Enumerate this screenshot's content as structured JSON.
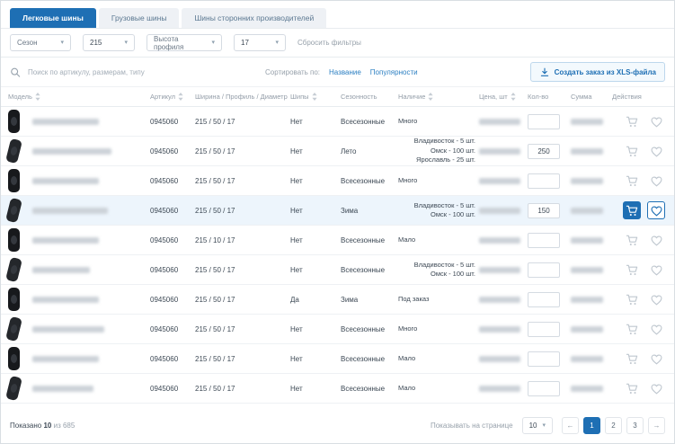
{
  "colors": {
    "accent": "#1e6fb4",
    "link": "#2b7fc2"
  },
  "tabs": [
    {
      "label": "Легковые шины",
      "active": true
    },
    {
      "label": "Грузовые шины",
      "active": false
    },
    {
      "label": "Шины сторонних производителей",
      "active": false
    }
  ],
  "filters": {
    "season_placeholder": "Сезон",
    "width_value": "215",
    "profile_placeholder": "Высота профиля",
    "diameter_value": "17",
    "reset_label": "Сбросить фильтры"
  },
  "search": {
    "placeholder": "Поиск по артикулу, размерам, типу"
  },
  "sort": {
    "label": "Сортировать по:",
    "options": [
      "Название",
      "Популярности"
    ]
  },
  "xls_button_label": "Создать заказ из XLS-файла",
  "table": {
    "headers": [
      {
        "label": "Модель",
        "sortable": true
      },
      {
        "label": "Артикул",
        "sortable": true
      },
      {
        "label": "Ширина / Профиль / Диаметр",
        "sortable": false
      },
      {
        "label": "Шипы",
        "sortable": true
      },
      {
        "label": "Сезонность",
        "sortable": false
      },
      {
        "label": "Наличие",
        "sortable": true
      },
      {
        "label": "Цена, шт",
        "sortable": true
      },
      {
        "label": "Кол-во",
        "sortable": false
      },
      {
        "label": "Сумма",
        "sortable": false
      },
      {
        "label": "Действия",
        "sortable": false
      }
    ],
    "rows": [
      {
        "article": "0945060",
        "size": "215 / 50 / 17",
        "spikes": "Нет",
        "season": "Всесезонные",
        "availability": [
          "Много"
        ],
        "qty": "",
        "selected": false
      },
      {
        "article": "0945060",
        "size": "215 / 50 / 17",
        "spikes": "Нет",
        "season": "Лето",
        "availability": [
          "Владивосток - 5 шт.",
          "Омск - 100 шт.",
          "Ярославль - 25 шт."
        ],
        "qty": "250",
        "selected": false
      },
      {
        "article": "0945060",
        "size": "215 / 50 / 17",
        "spikes": "Нет",
        "season": "Всесезонные",
        "availability": [
          "Много"
        ],
        "qty": "",
        "selected": false
      },
      {
        "article": "0945060",
        "size": "215 / 50 / 17",
        "spikes": "Нет",
        "season": "Зима",
        "availability": [
          "Владивосток - 5 шт.",
          "Омск - 100 шт."
        ],
        "qty": "150",
        "selected": true
      },
      {
        "article": "0945060",
        "size": "215 / 10 / 17",
        "spikes": "Нет",
        "season": "Всесезонные",
        "availability": [
          "Мало"
        ],
        "qty": "",
        "selected": false
      },
      {
        "article": "0945060",
        "size": "215 / 50 / 17",
        "spikes": "Нет",
        "season": "Всесезонные",
        "availability": [
          "Владивосток - 5 шт.",
          "Омск - 100 шт."
        ],
        "qty": "",
        "selected": false
      },
      {
        "article": "0945060",
        "size": "215 / 50 / 17",
        "spikes": "Да",
        "season": "Зима",
        "availability": [
          "Под заказ"
        ],
        "qty": "",
        "selected": false
      },
      {
        "article": "0945060",
        "size": "215 / 50 / 17",
        "spikes": "Нет",
        "season": "Всесезонные",
        "availability": [
          "Много"
        ],
        "qty": "",
        "selected": false
      },
      {
        "article": "0945060",
        "size": "215 / 50 / 17",
        "spikes": "Нет",
        "season": "Всесезонные",
        "availability": [
          "Мало"
        ],
        "qty": "",
        "selected": false
      },
      {
        "article": "0945060",
        "size": "215 / 50 / 17",
        "spikes": "Нет",
        "season": "Всесезонные",
        "availability": [
          "Мало"
        ],
        "qty": "",
        "selected": false
      }
    ]
  },
  "footer": {
    "shown_prefix": "Показано",
    "shown_count": "10",
    "shown_suffix": "из 685",
    "per_page_label": "Показывать на странице",
    "per_page_value": "10",
    "pagination": {
      "prev": "←",
      "next": "→",
      "pages": [
        "1",
        "2",
        "3"
      ],
      "active": "1"
    }
  }
}
